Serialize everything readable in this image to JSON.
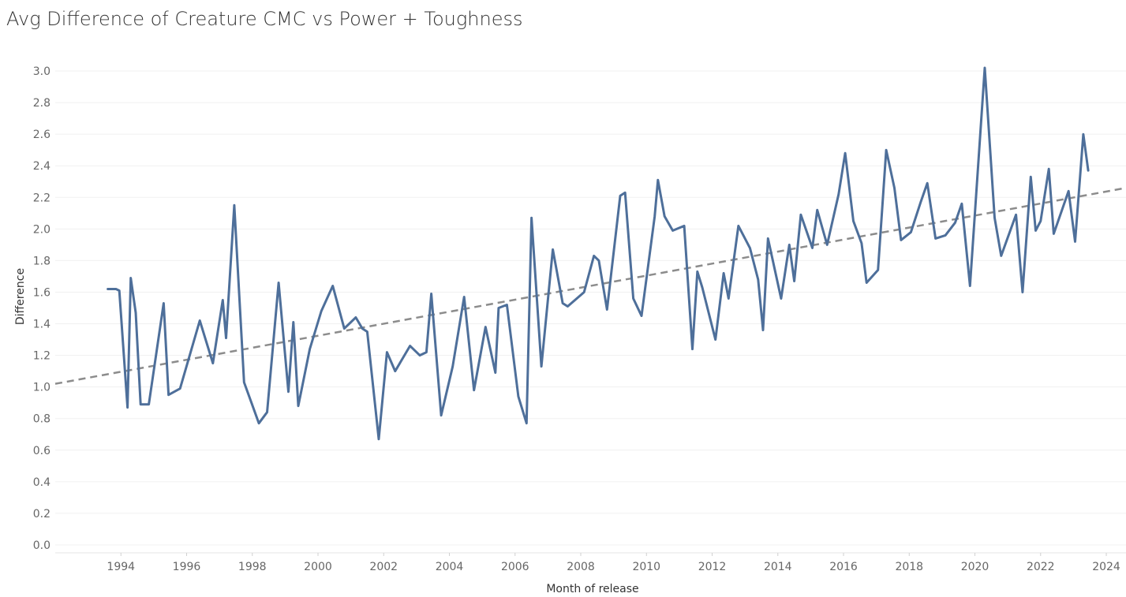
{
  "chart_data": {
    "type": "line",
    "title": "Avg Difference of Creature CMC vs Power + Toughness",
    "xlabel": "Month of release",
    "ylabel": "Difference",
    "xlim": [
      1992.0,
      2024.6
    ],
    "ylim": [
      -0.05,
      3.15
    ],
    "x_ticks": [
      "1994",
      "1996",
      "1998",
      "2000",
      "2002",
      "2004",
      "2006",
      "2008",
      "2010",
      "2012",
      "2014",
      "2016",
      "2018",
      "2020",
      "2022",
      "2024"
    ],
    "y_ticks": [
      "0.0",
      "0.2",
      "0.4",
      "0.6",
      "0.8",
      "1.0",
      "1.2",
      "1.4",
      "1.6",
      "1.8",
      "2.0",
      "2.2",
      "2.4",
      "2.6",
      "2.8",
      "3.0"
    ],
    "grid": "horizontal",
    "series": [
      {
        "color": "#4e6f9a",
        "points": [
          [
            1993.6,
            1.62
          ],
          [
            1993.85,
            1.62
          ],
          [
            1993.95,
            1.61
          ],
          [
            1994.2,
            0.87
          ],
          [
            1994.3,
            1.69
          ],
          [
            1994.45,
            1.47
          ],
          [
            1994.6,
            0.89
          ],
          [
            1994.85,
            0.89
          ],
          [
            1995.3,
            1.53
          ],
          [
            1995.45,
            0.95
          ],
          [
            1995.8,
            0.99
          ],
          [
            1996.4,
            1.42
          ],
          [
            1996.8,
            1.15
          ],
          [
            1997.1,
            1.55
          ],
          [
            1997.2,
            1.31
          ],
          [
            1997.45,
            2.15
          ],
          [
            1997.75,
            1.03
          ],
          [
            1998.2,
            0.77
          ],
          [
            1998.45,
            0.84
          ],
          [
            1998.8,
            1.66
          ],
          [
            1999.1,
            0.97
          ],
          [
            1999.25,
            1.41
          ],
          [
            1999.4,
            0.88
          ],
          [
            1999.75,
            1.24
          ],
          [
            2000.1,
            1.48
          ],
          [
            2000.45,
            1.64
          ],
          [
            2000.8,
            1.37
          ],
          [
            2001.15,
            1.44
          ],
          [
            2001.35,
            1.37
          ],
          [
            2001.5,
            1.35
          ],
          [
            2001.85,
            0.67
          ],
          [
            2002.1,
            1.22
          ],
          [
            2002.35,
            1.1
          ],
          [
            2002.8,
            1.26
          ],
          [
            2003.1,
            1.2
          ],
          [
            2003.3,
            1.22
          ],
          [
            2003.45,
            1.59
          ],
          [
            2003.75,
            0.82
          ],
          [
            2004.1,
            1.13
          ],
          [
            2004.45,
            1.57
          ],
          [
            2004.75,
            0.98
          ],
          [
            2005.1,
            1.38
          ],
          [
            2005.4,
            1.09
          ],
          [
            2005.5,
            1.5
          ],
          [
            2005.75,
            1.52
          ],
          [
            2006.1,
            0.94
          ],
          [
            2006.35,
            0.77
          ],
          [
            2006.5,
            2.07
          ],
          [
            2006.8,
            1.13
          ],
          [
            2007.15,
            1.87
          ],
          [
            2007.45,
            1.53
          ],
          [
            2007.6,
            1.51
          ],
          [
            2008.1,
            1.6
          ],
          [
            2008.4,
            1.83
          ],
          [
            2008.55,
            1.8
          ],
          [
            2008.8,
            1.49
          ],
          [
            2009.2,
            2.21
          ],
          [
            2009.35,
            2.23
          ],
          [
            2009.6,
            1.56
          ],
          [
            2009.85,
            1.45
          ],
          [
            2010.25,
            2.08
          ],
          [
            2010.35,
            2.31
          ],
          [
            2010.55,
            2.08
          ],
          [
            2010.8,
            1.99
          ],
          [
            2011.15,
            2.02
          ],
          [
            2011.4,
            1.24
          ],
          [
            2011.55,
            1.73
          ],
          [
            2011.7,
            1.63
          ],
          [
            2012.1,
            1.3
          ],
          [
            2012.35,
            1.72
          ],
          [
            2012.5,
            1.56
          ],
          [
            2012.8,
            2.02
          ],
          [
            2013.15,
            1.88
          ],
          [
            2013.4,
            1.68
          ],
          [
            2013.55,
            1.36
          ],
          [
            2013.7,
            1.94
          ],
          [
            2014.1,
            1.56
          ],
          [
            2014.35,
            1.9
          ],
          [
            2014.5,
            1.67
          ],
          [
            2014.7,
            2.09
          ],
          [
            2015.05,
            1.88
          ],
          [
            2015.2,
            2.12
          ],
          [
            2015.5,
            1.9
          ],
          [
            2015.85,
            2.22
          ],
          [
            2016.05,
            2.48
          ],
          [
            2016.3,
            2.05
          ],
          [
            2016.55,
            1.91
          ],
          [
            2016.7,
            1.66
          ],
          [
            2017.05,
            1.74
          ],
          [
            2017.3,
            2.5
          ],
          [
            2017.55,
            2.26
          ],
          [
            2017.75,
            1.93
          ],
          [
            2018.05,
            1.98
          ],
          [
            2018.35,
            2.17
          ],
          [
            2018.55,
            2.29
          ],
          [
            2018.8,
            1.94
          ],
          [
            2019.1,
            1.96
          ],
          [
            2019.4,
            2.04
          ],
          [
            2019.6,
            2.16
          ],
          [
            2019.85,
            1.64
          ],
          [
            2020.3,
            3.02
          ],
          [
            2020.6,
            2.07
          ],
          [
            2020.8,
            1.83
          ],
          [
            2021.25,
            2.09
          ],
          [
            2021.45,
            1.6
          ],
          [
            2021.7,
            2.33
          ],
          [
            2021.85,
            1.99
          ],
          [
            2022.0,
            2.05
          ],
          [
            2022.25,
            2.38
          ],
          [
            2022.4,
            1.97
          ],
          [
            2022.85,
            2.24
          ],
          [
            2023.05,
            1.92
          ],
          [
            2023.3,
            2.6
          ],
          [
            2023.45,
            2.37
          ]
        ]
      }
    ],
    "trend_line": {
      "style": "dashed",
      "color": "#8c8c8c",
      "x": [
        1992.0,
        2024.6
      ],
      "y": [
        1.02,
        2.26
      ]
    }
  }
}
